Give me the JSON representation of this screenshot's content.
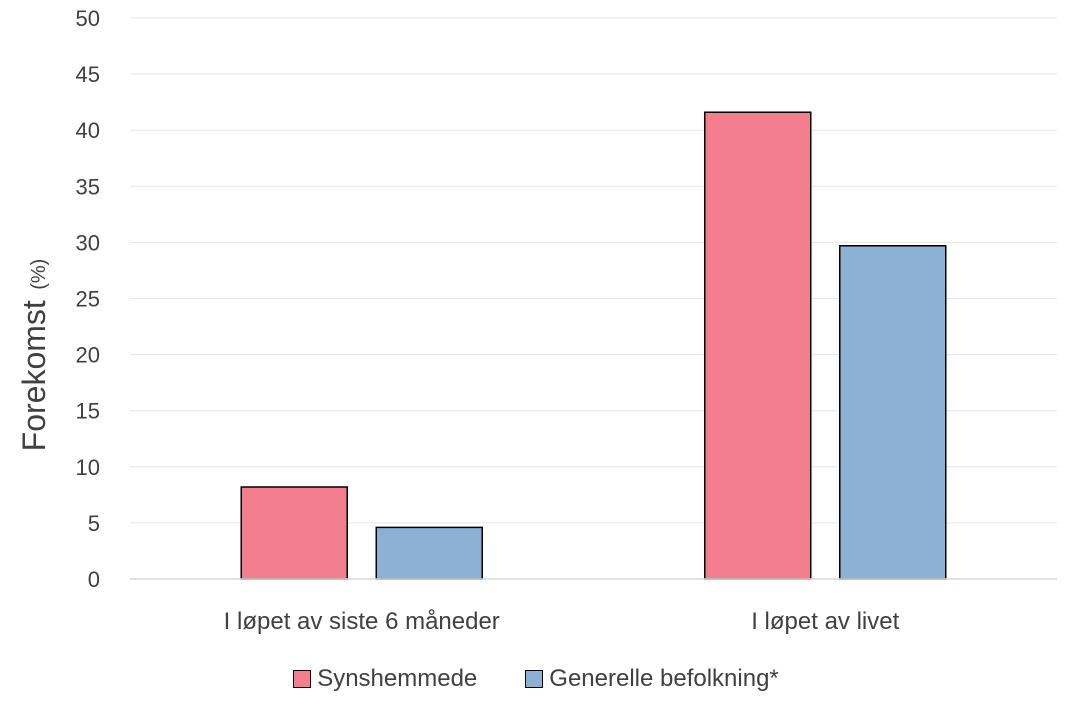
{
  "chart_data": {
    "type": "bar",
    "categories": [
      "I løpet av siste 6 måneder",
      "I løpet av livet"
    ],
    "series": [
      {
        "name": "Synshemmede",
        "values": [
          8.2,
          41.6
        ],
        "color": "#F27E8E"
      },
      {
        "name": "Generelle befolkning*",
        "values": [
          4.6,
          29.7
        ],
        "color": "#8DB1D4"
      }
    ],
    "ylabel": "Forekomst",
    "ylabel_unit": "(%)",
    "ylim": [
      0,
      50
    ],
    "yticks": [
      0,
      5,
      10,
      15,
      20,
      25,
      30,
      35,
      40,
      45,
      50
    ],
    "grid": true,
    "legend_position": "bottom"
  }
}
